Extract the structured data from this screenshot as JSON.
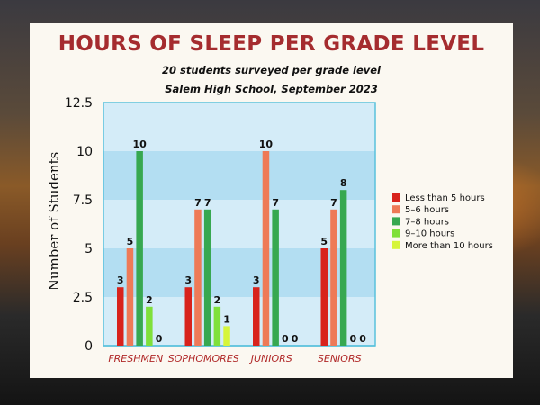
{
  "chart_data": {
    "type": "bar",
    "title": "HOURS OF SLEEP PER GRADE LEVEL",
    "subtitle": "20 students surveyed per grade level",
    "subtitle2": "Salem High School, September 2023",
    "xlabel": "",
    "ylabel": "Number of Students",
    "ylim": [
      0,
      12.5
    ],
    "yticks": [
      "0",
      "2.5",
      "5",
      "7.5",
      "10",
      "12.5"
    ],
    "ytick_values": [
      0,
      2.5,
      5,
      7.5,
      10,
      12.5
    ],
    "categories": [
      "FRESHMEN",
      "SOPHOMORES",
      "JUNIORS",
      "SENIORS"
    ],
    "series": [
      {
        "name": "Less than 5 hours",
        "color": "#d8231c",
        "values": [
          3,
          3,
          3,
          5
        ]
      },
      {
        "name": "5–6 hours",
        "color": "#ee7a57",
        "values": [
          5,
          7,
          10,
          7
        ]
      },
      {
        "name": "7–8 hours",
        "color": "#37a850",
        "values": [
          10,
          7,
          7,
          8
        ]
      },
      {
        "name": "9–10 hours",
        "color": "#7fe03a",
        "values": [
          2,
          2,
          0,
          0
        ]
      },
      {
        "name": "More than 10 hours",
        "color": "#d6f53a",
        "values": [
          0,
          1,
          0,
          0
        ]
      }
    ],
    "grid": "alternating horizontal bands",
    "band_colors": [
      "#d4ecf8",
      "#b3def2"
    ],
    "legend_position": "right",
    "data_labels": true
  }
}
